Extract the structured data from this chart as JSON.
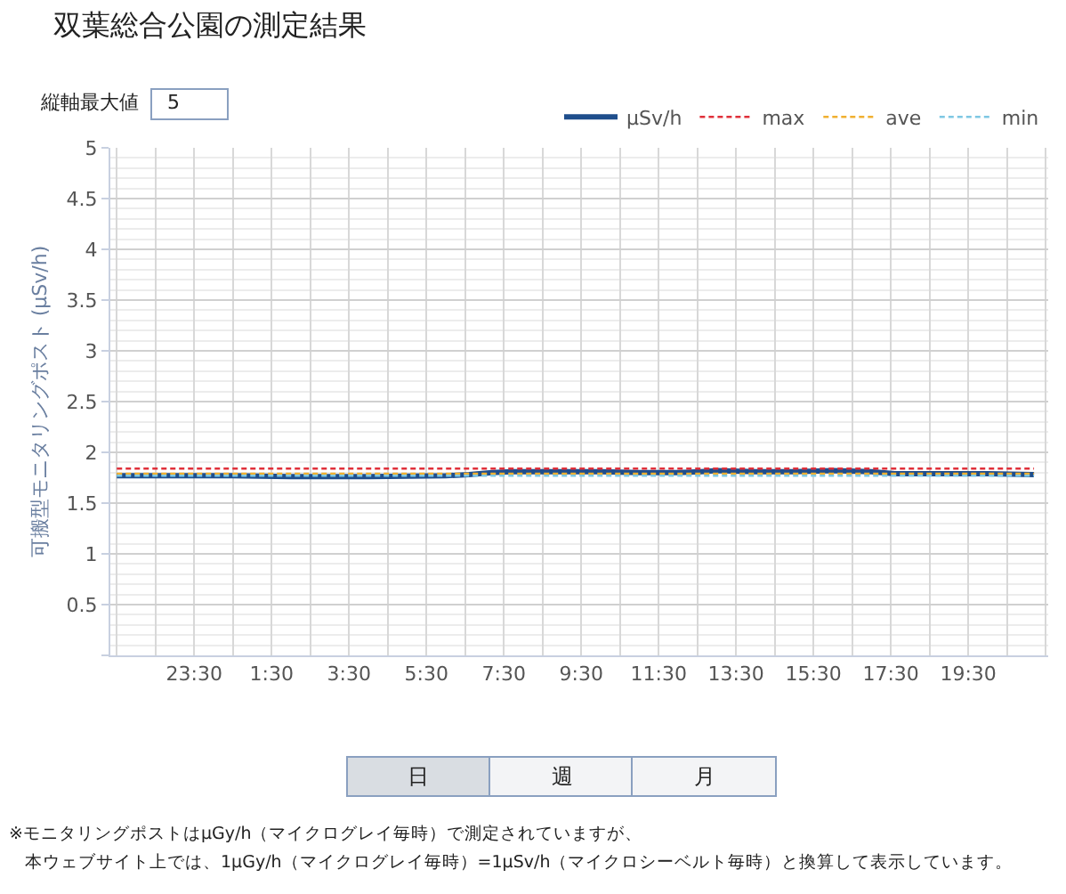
{
  "chart_data": {
    "type": "line",
    "title": "双葉総合公園の測定結果",
    "ylabel": "可搬型モニタリングポスト (μSv/h)",
    "x": [
      "--01-01T21:30",
      "--01-01T23:00",
      "--01-02T00:30",
      "--01-02T02:00",
      "--01-02T04:00",
      "--01-02T06:00",
      "--01-02T06:36",
      "--01-02T07:12",
      "--01-02T07:42",
      "--01-02T09:00",
      "--01-02T10:00",
      "--01-02T11:00",
      "--01-02T12:00",
      "--01-02T12:36",
      "--01-02T13:00",
      "--01-02T14:00",
      "--01-02T15:00",
      "--01-02T16:00",
      "--01-02T17:00",
      "--01-02T17:36",
      "--01-02T19:00",
      "--01-02T20:00",
      "--01-02T21:12"
    ],
    "series": [
      {
        "name": "μSv/h",
        "color": "#1f4e8c",
        "values": [
          1.77,
          1.77,
          1.77,
          1.76,
          1.76,
          1.77,
          1.78,
          1.8,
          1.81,
          1.81,
          1.81,
          1.8,
          1.8,
          1.81,
          1.82,
          1.81,
          1.81,
          1.82,
          1.81,
          1.79,
          1.79,
          1.79,
          1.78
        ]
      },
      {
        "name": "max",
        "color": "#e0303a",
        "type": "line",
        "line_style": "dashed",
        "x": [
          "--01-01T21:30",
          "--01-02T21:12"
        ],
        "values": [
          1.84,
          1.84
        ]
      },
      {
        "name": "ave",
        "color": "#f0b030",
        "type": "line",
        "line_style": "dashed",
        "x": [
          "--01-01T21:30",
          "--01-02T21:12"
        ],
        "values": [
          1.79,
          1.79
        ]
      },
      {
        "name": "min",
        "color": "#7ec8e3",
        "type": "line",
        "line_style": "dashed",
        "x": [
          "--01-01T21:30",
          "--01-02T21:12"
        ],
        "values": [
          1.77,
          1.77
        ]
      }
    ],
    "xlim": [
      "--01-01T21:20",
      "--01-02T21:34"
    ],
    "xticks": [
      {
        "value": "--01-01T21:30",
        "label": null
      },
      {
        "value": "--01-01T22:30",
        "label": null
      },
      {
        "value": "--01-01T23:30",
        "label": "23:30"
      },
      {
        "value": "--01-02T00:30",
        "label": null
      },
      {
        "value": "--01-02T01:30",
        "label": "1:30"
      },
      {
        "value": "--01-02T02:30",
        "label": null
      },
      {
        "value": "--01-02T03:30",
        "label": "3:30"
      },
      {
        "value": "--01-02T04:30",
        "label": null
      },
      {
        "value": "--01-02T05:30",
        "label": "5:30"
      },
      {
        "value": "--01-02T06:30",
        "label": null
      },
      {
        "value": "--01-02T07:30",
        "label": "7:30"
      },
      {
        "value": "--01-02T08:30",
        "label": null
      },
      {
        "value": "--01-02T09:30",
        "label": "9:30"
      },
      {
        "value": "--01-02T10:30",
        "label": null
      },
      {
        "value": "--01-02T11:30",
        "label": "11:30"
      },
      {
        "value": "--01-02T12:30",
        "label": null
      },
      {
        "value": "--01-02T13:30",
        "label": "13:30"
      },
      {
        "value": "--01-02T14:30",
        "label": null
      },
      {
        "value": "--01-02T15:30",
        "label": "15:30"
      },
      {
        "value": "--01-02T16:30",
        "label": null
      },
      {
        "value": "--01-02T17:30",
        "label": "17:30"
      },
      {
        "value": "--01-02T18:30",
        "label": null
      },
      {
        "value": "--01-02T19:30",
        "label": "19:30"
      },
      {
        "value": "--01-02T20:30",
        "label": null
      },
      {
        "value": "--01-02T21:30",
        "label": null
      }
    ],
    "ylim": [
      0,
      5
    ],
    "yticks": [
      {
        "value": 0,
        "label": null
      },
      0.5,
      1,
      1.5,
      2,
      2.5,
      3,
      3.5,
      4,
      4.5,
      5
    ],
    "grid": true,
    "legend": "top right",
    "marker": "none",
    "line_style": "solid",
    "annotations": [
      "縦軸最大値",
      "5",
      "日",
      "週",
      "月",
      "※モニタリングポストはμGy/h（マイクログレイ毎時）で測定されていますが、",
      "本ウェブサイト上では、1μGy/h（マイクログレイ毎時）=1μSv/h（マイクロシーベルト毎時）と換算して表示しています。"
    ]
  }
}
